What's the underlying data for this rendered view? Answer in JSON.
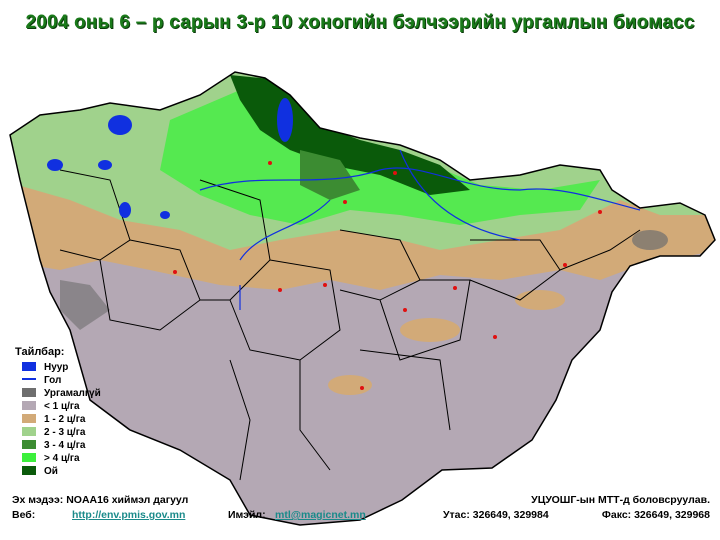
{
  "header": {
    "title": "2004 оны 6 – р сарын 3-р 10 хоногийн бэлчээрийн ургамлын биомасс"
  },
  "legend": {
    "title": "Тайлбар:",
    "items": [
      {
        "label": "Нуур",
        "color": "#1030e0"
      },
      {
        "label": "Гол",
        "color": "#1030e0",
        "symbol": "line"
      },
      {
        "label": "Ургамалгүй",
        "color": "#6e6e6e"
      },
      {
        "label": "< 1 ц/га",
        "color": "#b4a8b4"
      },
      {
        "label": "1 - 2 ц/га",
        "color": "#d2aa78"
      },
      {
        "label": "2 - 3 ц/га",
        "color": "#a0d28c"
      },
      {
        "label": "3 - 4 ц/га",
        "color": "#3c8c32"
      },
      {
        "label": "> 4 ц/га",
        "color": "#3cf03c"
      },
      {
        "label": "Ой",
        "color": "#0a5a0a"
      }
    ]
  },
  "footer": {
    "source": "Эх мэдээ: NOAA16 хиймэл дагуул",
    "web_label": "Веб:",
    "web": "http://env.pmis.gov.mn",
    "email_label": "Имэйл:",
    "email": "mtl@magicnet.mn",
    "credit": "УЦУОШГ-ын МТТ-д боловсруулав.",
    "phone": "Утас: 326649, 329984",
    "fax": "Факс: 326649, 329968"
  }
}
